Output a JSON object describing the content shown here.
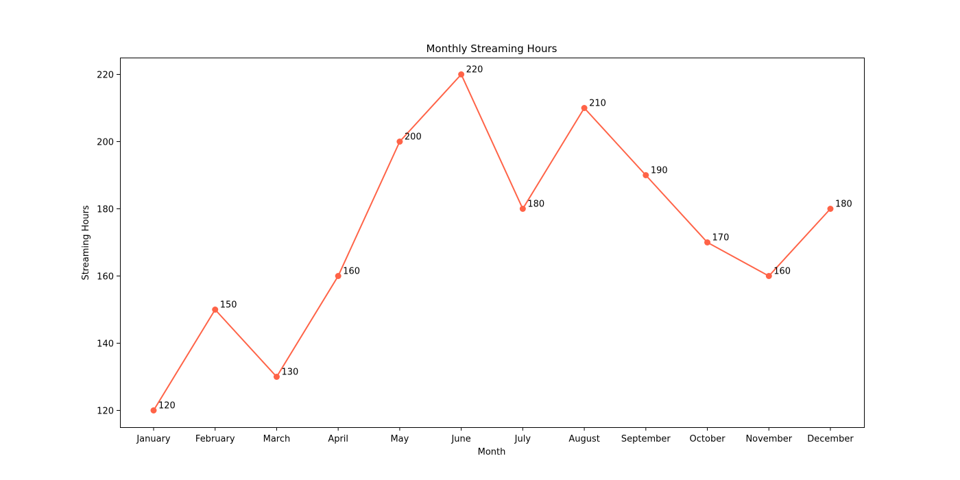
{
  "chart_data": {
    "type": "line",
    "title": "Monthly Streaming Hours",
    "xlabel": "Month",
    "ylabel": "Streaming Hours",
    "categories": [
      "January",
      "February",
      "March",
      "April",
      "May",
      "June",
      "July",
      "August",
      "September",
      "October",
      "November",
      "December"
    ],
    "series": [
      {
        "values": [
          120,
          150,
          130,
          160,
          200,
          220,
          180,
          210,
          190,
          170,
          160,
          180
        ],
        "color": "#ff6347",
        "marker": "circle"
      }
    ],
    "data_labels": true,
    "ylim": [
      115,
      225
    ],
    "yticks": [
      120,
      140,
      160,
      180,
      200,
      220
    ],
    "grid": false,
    "legend": "none"
  }
}
